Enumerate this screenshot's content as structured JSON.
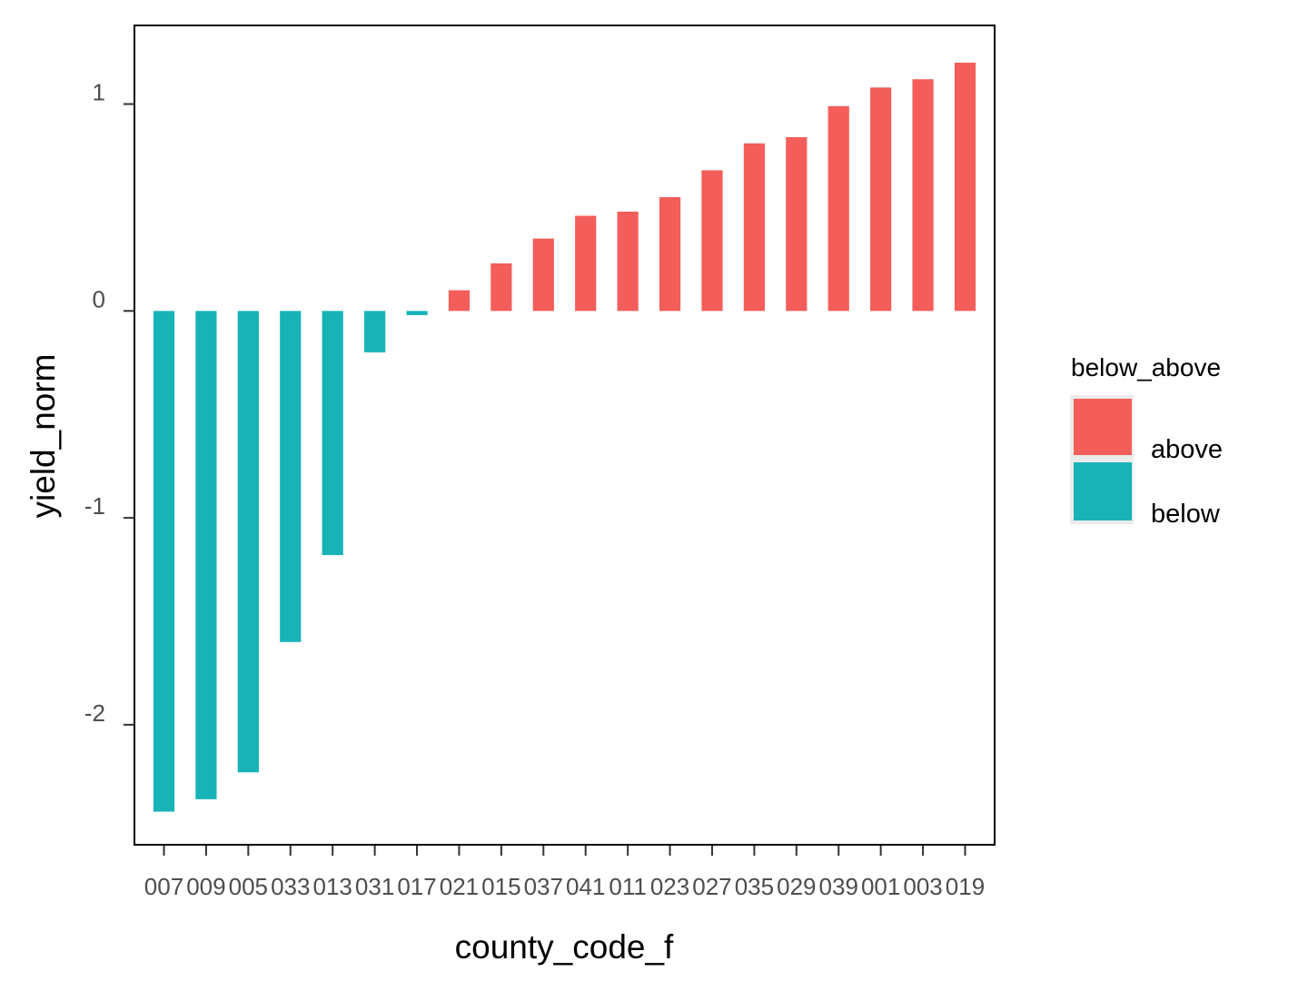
{
  "chart_data": {
    "type": "bar",
    "xlabel": "county_code_f",
    "ylabel": "yield_norm",
    "categories": [
      "007",
      "009",
      "005",
      "033",
      "013",
      "031",
      "017",
      "021",
      "015",
      "037",
      "041",
      "011",
      "023",
      "027",
      "035",
      "029",
      "039",
      "001",
      "003",
      "019"
    ],
    "values": [
      -2.42,
      -2.36,
      -2.23,
      -1.6,
      -1.18,
      -0.2,
      -0.02,
      0.1,
      0.23,
      0.35,
      0.46,
      0.48,
      0.55,
      0.68,
      0.81,
      0.84,
      0.99,
      1.08,
      1.12,
      1.2
    ],
    "groups": [
      "below",
      "below",
      "below",
      "below",
      "below",
      "below",
      "below",
      "above",
      "above",
      "above",
      "above",
      "above",
      "above",
      "above",
      "above",
      "above",
      "above",
      "above",
      "above",
      "above"
    ],
    "ylim": [
      -2.58,
      1.38
    ],
    "yticks": [
      -2,
      -1,
      0,
      1
    ],
    "ytick_labels": [
      "-2",
      "-1",
      "0",
      "1"
    ],
    "grid": false,
    "legend": {
      "title": "below_above",
      "position": "right",
      "items": [
        {
          "label": "above",
          "color": "#F35E5A"
        },
        {
          "label": "below",
          "color": "#17B3B7"
        }
      ]
    }
  }
}
